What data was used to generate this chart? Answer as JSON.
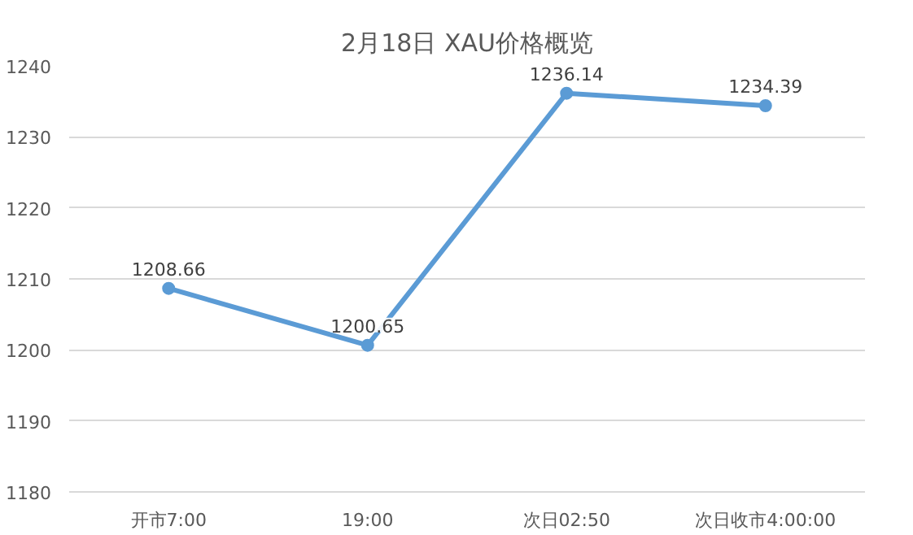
{
  "chart_data": {
    "type": "line",
    "title": "2月18日 XAU价格概览",
    "categories": [
      "开市7:00",
      "19:00",
      "次日02:50",
      "次日收市4:00:00"
    ],
    "series": [
      {
        "color": "#5b9bd5",
        "values": [
          1208.66,
          1200.65,
          1236.14,
          1234.39
        ]
      }
    ],
    "ylim": [
      1180,
      1240
    ],
    "yticks": [
      1180,
      1190,
      1200,
      1210,
      1220,
      1230,
      1240
    ],
    "grid": "y",
    "marker": "circle",
    "line_style": "solid",
    "data_labels": true
  }
}
